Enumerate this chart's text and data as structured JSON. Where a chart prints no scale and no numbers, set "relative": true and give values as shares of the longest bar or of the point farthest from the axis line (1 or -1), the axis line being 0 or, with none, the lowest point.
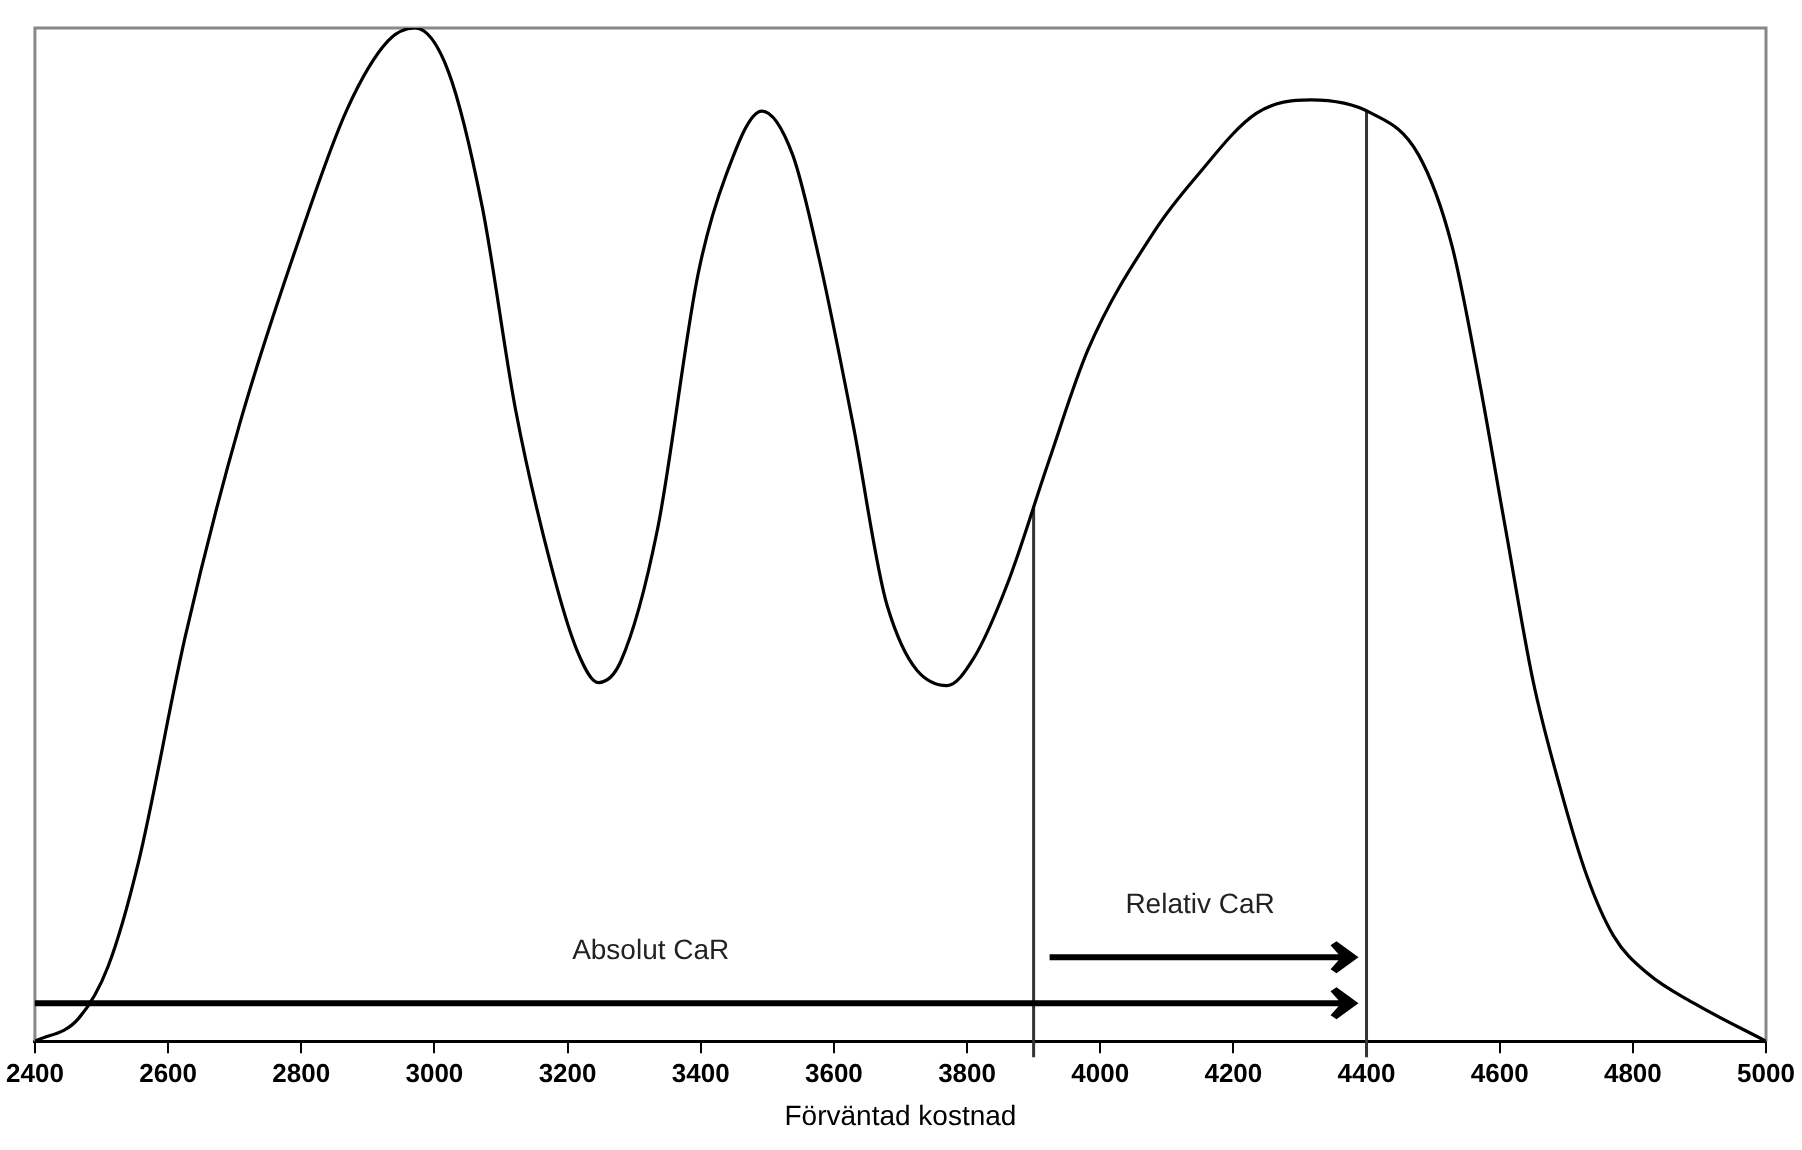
{
  "chart_data": {
    "type": "line",
    "relative": true,
    "xlabel": "Förväntad kostnad",
    "xlim": [
      2400,
      5000
    ],
    "xticks": [
      2400,
      2600,
      2800,
      3000,
      3200,
      3400,
      3600,
      3800,
      4000,
      4200,
      4400,
      4600,
      4800,
      5000
    ],
    "grid": false,
    "legend": false,
    "marker": "none",
    "line_style": "solid",
    "series": [
      {
        "color": "#000000",
        "x": [
          2400,
          2465,
          2510,
          2556,
          2626,
          2707,
          2798,
          2869,
          2930,
          2971,
          3021,
          3072,
          3122,
          3173,
          3214,
          3246,
          3280,
          3335,
          3396,
          3437,
          3492,
          3538,
          3578,
          3629,
          3680,
          3770,
          3810,
          3861,
          3922,
          3982,
          4083,
          4144,
          4235,
          4316,
          4407,
          4478,
          4528,
          4569,
          4609,
          4650,
          4690,
          4731,
          4771,
          4822,
          4893,
          5000
        ],
        "values": [
          0,
          0.022,
          0.074,
          0.178,
          0.4,
          0.608,
          0.794,
          0.92,
          0.987,
          1,
          0.957,
          0.823,
          0.623,
          0.475,
          0.386,
          0.354,
          0.375,
          0.505,
          0.757,
          0.853,
          0.918,
          0.875,
          0.772,
          0.608,
          0.43,
          0.351,
          0.378,
          0.452,
          0.571,
          0.683,
          0.801,
          0.853,
          0.916,
          0.929,
          0.916,
          0.875,
          0.786,
          0.653,
          0.505,
          0.356,
          0.252,
          0.163,
          0.104,
          0.067,
          0.037,
          0
        ]
      }
    ],
    "ref_lines": [
      {
        "axis": "x",
        "value": 3900,
        "color": "#333333"
      },
      {
        "axis": "x",
        "value": 4400,
        "color": "#333333"
      }
    ],
    "annotations": [
      "Absolut CaR",
      "Relativ CaR"
    ]
  }
}
